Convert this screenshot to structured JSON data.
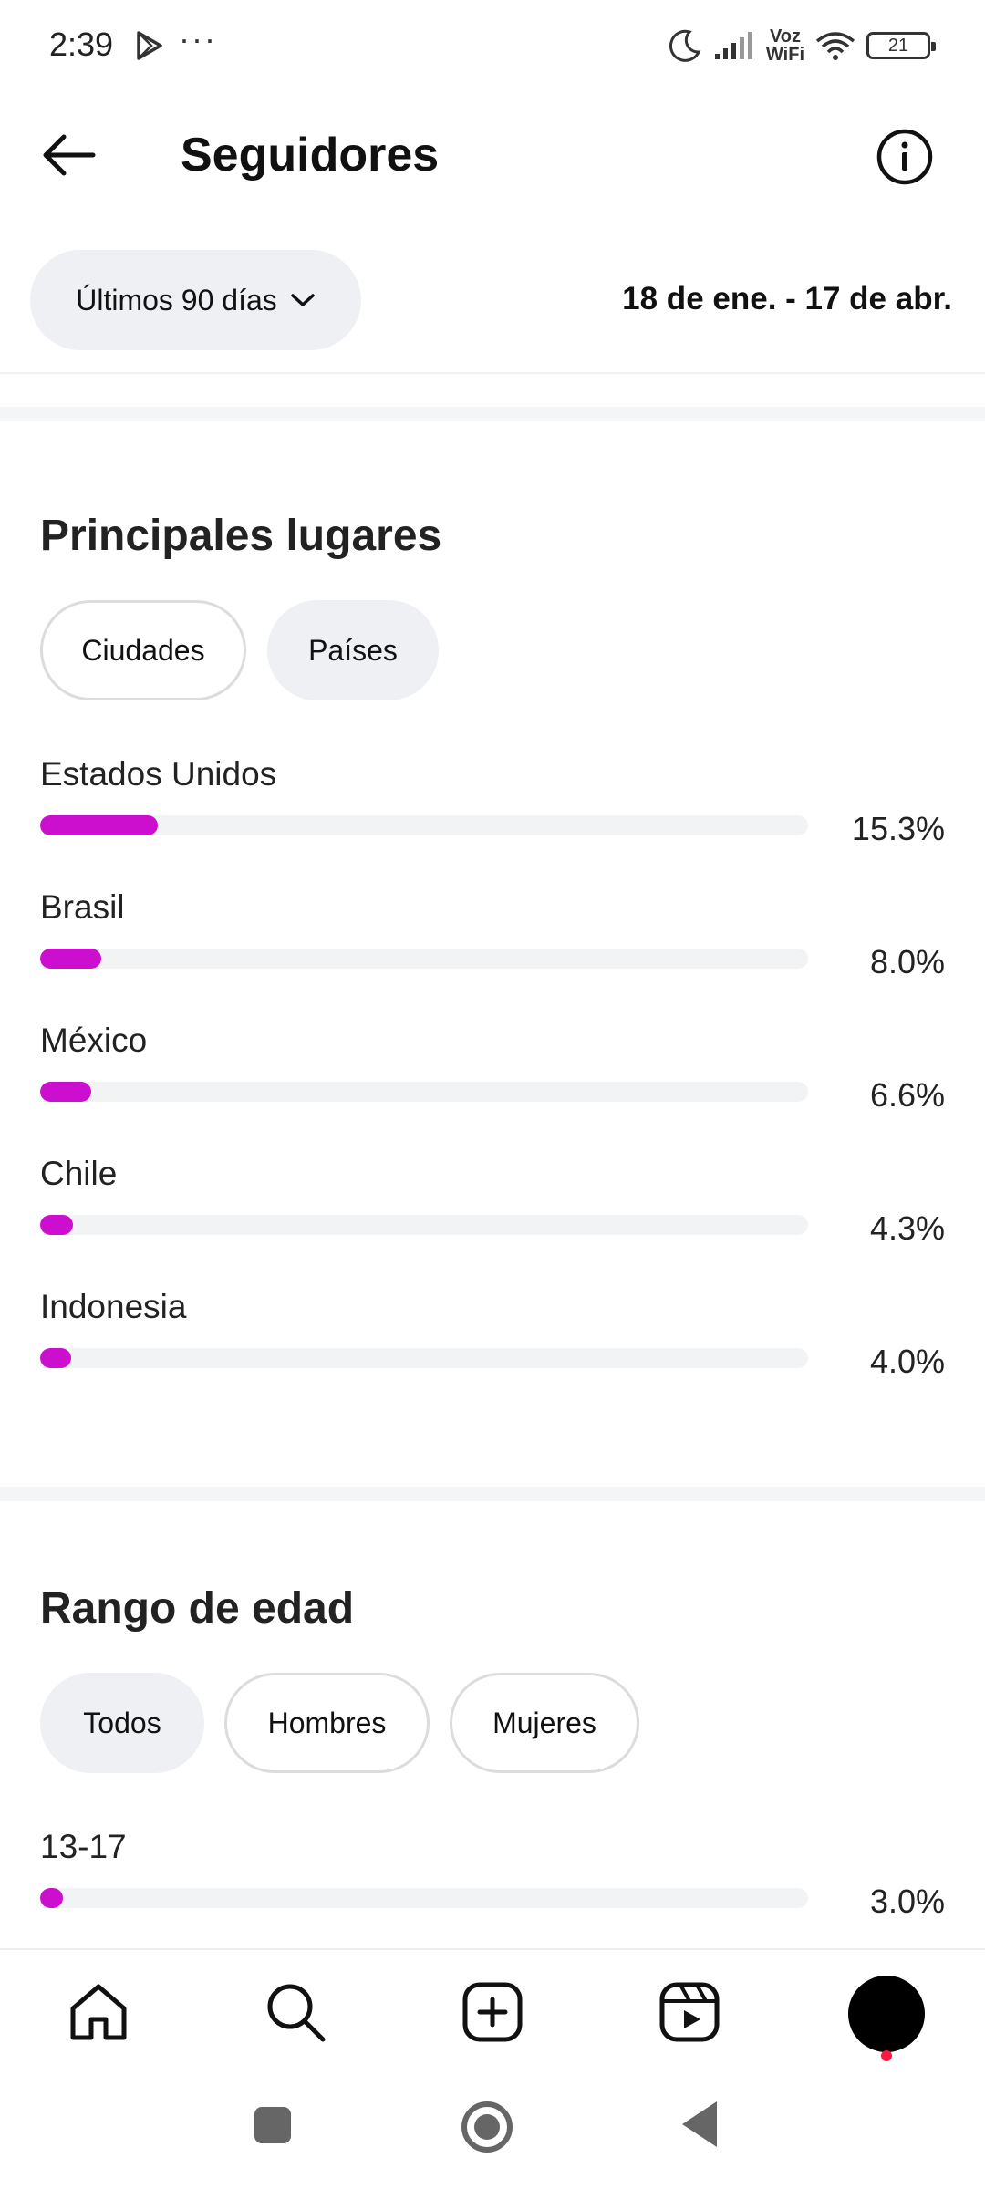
{
  "status_bar": {
    "time": "2:39",
    "dots": "···",
    "voz_line1": "Voz",
    "voz_line2": "WiFi",
    "battery": "21"
  },
  "header": {
    "title": "Seguidores"
  },
  "filters": {
    "period": "Últimos 90 días",
    "date_range": "18 de ene. - 17 de abr."
  },
  "locations": {
    "title": "Principales lugares",
    "tabs": [
      {
        "label": "Ciudades",
        "selected": true
      },
      {
        "label": "Países",
        "selected": false
      }
    ],
    "rows": [
      {
        "label": "Estados Unidos",
        "value": "15.3%",
        "fraction": 0.153
      },
      {
        "label": "Brasil",
        "value": "8.0%",
        "fraction": 0.08
      },
      {
        "label": "México",
        "value": "6.6%",
        "fraction": 0.066
      },
      {
        "label": "Chile",
        "value": "4.3%",
        "fraction": 0.043
      },
      {
        "label": "Indonesia",
        "value": "4.0%",
        "fraction": 0.04
      }
    ]
  },
  "age_range": {
    "title": "Rango de edad",
    "tabs": [
      {
        "label": "Todos",
        "selected": false
      },
      {
        "label": "Hombres",
        "selected": true
      },
      {
        "label": "Mujeres",
        "selected": true
      }
    ],
    "rows": [
      {
        "label": "13-17",
        "value": "3.0%",
        "fraction": 0.03
      }
    ]
  },
  "colors": {
    "bar_fill": "#cc0fcf",
    "track": "#f2f3f5",
    "notification": "#ff1744"
  },
  "bottom_nav": {
    "items": [
      "home-icon",
      "search-icon",
      "create-icon",
      "reels-icon",
      "profile-avatar"
    ]
  }
}
